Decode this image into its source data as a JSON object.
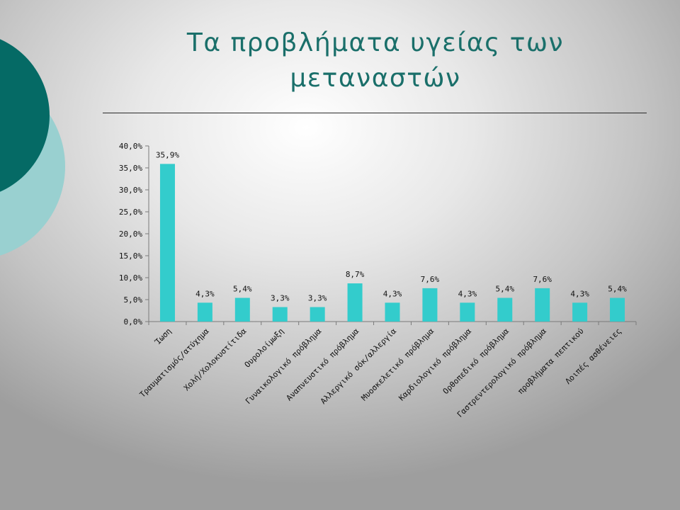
{
  "slide": {
    "title_line1": "Τα προβλήματα υγείας των",
    "title_line2": "μεταναστών"
  },
  "colors": {
    "bar": "#33cccc",
    "circle_dark": "#056a65",
    "circle_light": "#99d0d0",
    "title": "#1a6f6a"
  },
  "chart_data": {
    "type": "bar",
    "title": "",
    "xlabel": "",
    "ylabel": "",
    "ylim": [
      0,
      40
    ],
    "yticks": [
      "0,0%",
      "5,0%",
      "10,0%",
      "15,0%",
      "20,0%",
      "25,0%",
      "30,0%",
      "35,0%",
      "40,0%"
    ],
    "grid": false,
    "categories": [
      "Ίωση",
      "Τραυματισμός/ατύχημα",
      "Χολή/Χολοκυστίτιδα",
      "Ουρολοίμωξη",
      "Γυναικολογικό πρόβλημα",
      "Αναπνευστικό πρόβλημα",
      "Αλλεργικό σόκ/αλλεργία",
      "Μυοσκελετικό πρόβλημα",
      "Καρδιολογικό πρόβλημα",
      "Ορθοπεδικό πρόβλημα",
      "Γαστρεντερολογικό πρόβλημα",
      "προβλήματα πεπτικού",
      "Λοιπές ασθένειες"
    ],
    "values": [
      35.9,
      4.3,
      5.4,
      3.3,
      3.3,
      8.7,
      4.3,
      7.6,
      4.3,
      5.4,
      7.6,
      4.3,
      5.4
    ],
    "data_labels": [
      "35,9%",
      "4,3%",
      "5,4%",
      "3,3%",
      "3,3%",
      "8,7%",
      "4,3%",
      "7,6%",
      "4,3%",
      "5,4%",
      "7,6%",
      "4,3%",
      "5,4%"
    ]
  }
}
